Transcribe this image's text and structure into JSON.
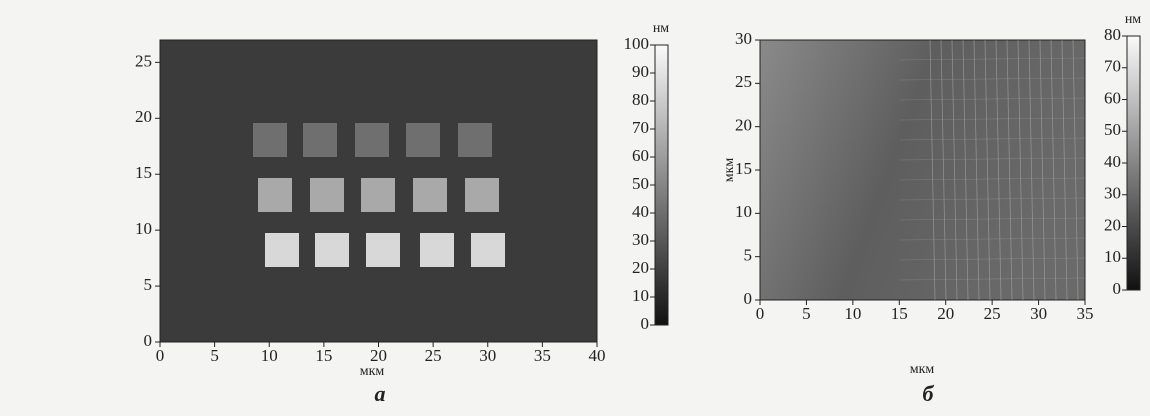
{
  "chart_data": [
    {
      "type": "image",
      "panel_label": "а",
      "xlabel": "мкм",
      "colorbar_label": "нм",
      "xlim": [
        0,
        40
      ],
      "xticks": [
        0,
        5,
        10,
        15,
        20,
        25,
        30,
        35,
        40
      ],
      "ylim": [
        0,
        27
      ],
      "yticks": [
        0,
        5,
        10,
        15,
        20,
        25
      ],
      "clim": [
        0,
        100
      ],
      "cticks": [
        0,
        10,
        20,
        30,
        40,
        50,
        60,
        70,
        80,
        90,
        100
      ]
    },
    {
      "type": "image",
      "panel_label": "б",
      "xlabel": "мкм",
      "ylabel": "мкм",
      "colorbar_label": "нм",
      "xlim": [
        0,
        35
      ],
      "xticks": [
        0,
        5,
        10,
        15,
        20,
        25,
        30,
        35
      ],
      "ylim": [
        0,
        30
      ],
      "yticks": [
        0,
        5,
        10,
        15,
        20,
        25,
        30
      ],
      "clim": [
        0,
        80
      ],
      "cticks": [
        0,
        10,
        20,
        30,
        40,
        50,
        60,
        70,
        80
      ]
    }
  ]
}
